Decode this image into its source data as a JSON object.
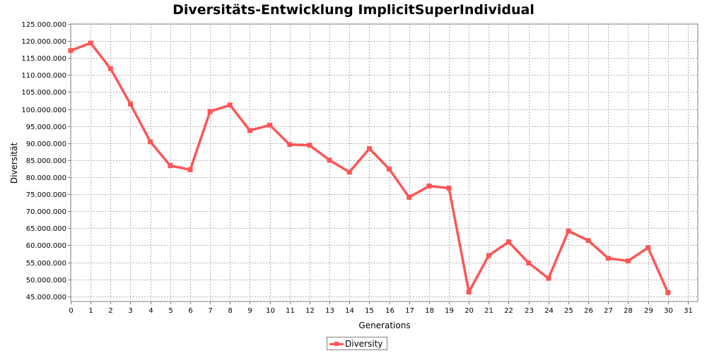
{
  "chart_data": {
    "type": "line",
    "title": "Diversitäts-Entwicklung ImplicitSuperIndividual",
    "xlabel": "Generations",
    "ylabel": "Diversität",
    "xlim": [
      0,
      31.5
    ],
    "ylim": [
      43500000,
      125000000
    ],
    "x_ticks": [
      "0",
      "1",
      "2",
      "3",
      "4",
      "5",
      "6",
      "7",
      "8",
      "9",
      "10",
      "11",
      "12",
      "13",
      "14",
      "15",
      "16",
      "17",
      "18",
      "19",
      "20",
      "21",
      "22",
      "23",
      "24",
      "25",
      "26",
      "27",
      "28",
      "29",
      "30",
      "31"
    ],
    "y_ticks": [
      {
        "value": 45000000,
        "label": "45.000.000"
      },
      {
        "value": 50000000,
        "label": "50.000.000"
      },
      {
        "value": 55000000,
        "label": "55.000.000"
      },
      {
        "value": 60000000,
        "label": "60.000.000"
      },
      {
        "value": 65000000,
        "label": "65.000.000"
      },
      {
        "value": 70000000,
        "label": "70.000.000"
      },
      {
        "value": 75000000,
        "label": "75.000.000"
      },
      {
        "value": 80000000,
        "label": "80.000.000"
      },
      {
        "value": 85000000,
        "label": "85.000.000"
      },
      {
        "value": 90000000,
        "label": "90.000.000"
      },
      {
        "value": 95000000,
        "label": "95.000.000"
      },
      {
        "value": 100000000,
        "label": "100.000.000"
      },
      {
        "value": 105000000,
        "label": "105.000.000"
      },
      {
        "value": 110000000,
        "label": "110.000.000"
      },
      {
        "value": 115000000,
        "label": "115.000.000"
      },
      {
        "value": 120000000,
        "label": "120.000.000"
      },
      {
        "value": 125000000,
        "label": "125.000.000"
      }
    ],
    "grid": true,
    "legend_position": "bottom-center",
    "series": [
      {
        "name": "Diversity",
        "color": "#ff5555",
        "x": [
          0,
          1,
          2,
          3,
          4,
          5,
          6,
          7,
          8,
          9,
          10,
          11,
          12,
          13,
          14,
          15,
          16,
          17,
          18,
          19,
          20,
          21,
          22,
          23,
          24,
          25,
          26,
          27,
          28,
          29,
          30
        ],
        "y": [
          117200000,
          119400000,
          111900000,
          101500000,
          90400000,
          83400000,
          82200000,
          99300000,
          101200000,
          93700000,
          95300000,
          89600000,
          89400000,
          85000000,
          81500000,
          88400000,
          82400000,
          74100000,
          77400000,
          76800000,
          46300000,
          57000000,
          61000000,
          54800000,
          50300000,
          64200000,
          61400000,
          56200000,
          55400000,
          59300000,
          46100000
        ]
      }
    ]
  }
}
